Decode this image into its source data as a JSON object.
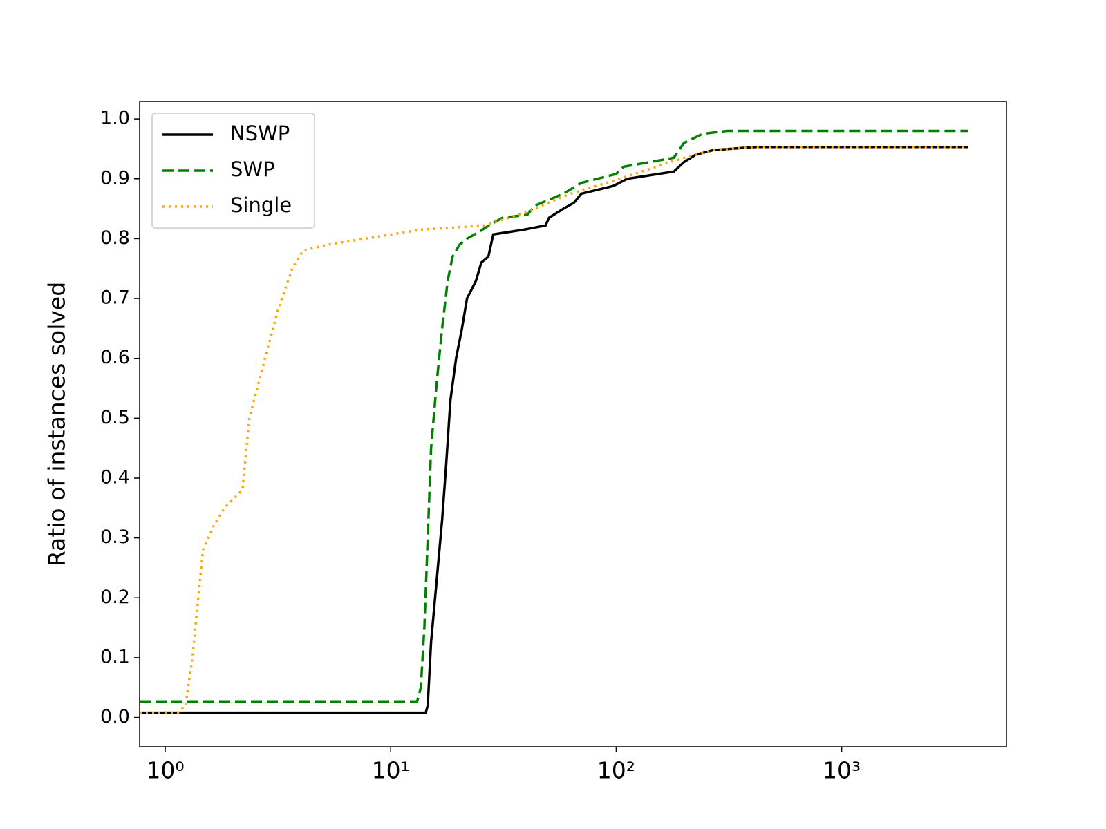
{
  "chart_data": {
    "type": "line",
    "y_label": "Ratio of instances solved",
    "xscale": "log",
    "xlim": [
      0.77,
      5380
    ],
    "xticks": [
      {
        "value": 1,
        "label": "10⁰"
      },
      {
        "value": 10,
        "label": "10¹"
      },
      {
        "value": 100,
        "label": "10²"
      },
      {
        "value": 1000,
        "label": "10³"
      }
    ],
    "ylim": [
      -0.049,
      1.029
    ],
    "yticks": [
      {
        "value": 0,
        "label": "0.0"
      },
      0.1,
      0.2,
      0.3,
      0.4,
      0.5,
      0.6,
      0.7,
      0.8,
      0.9,
      {
        "value": 1,
        "label": "1.0"
      }
    ],
    "grid": false,
    "legend": "upper left",
    "series": [
      {
        "name": "NSWP",
        "color": "#000000",
        "linestyle": "solid",
        "x": [
          0.77,
          14.3,
          14.6,
          15.1,
          16.0,
          16.9,
          17.6,
          18.4,
          19.5,
          20.7,
          21.8,
          23.9,
          25.2,
          27.1,
          28.5,
          39,
          48.6,
          50.4,
          58.3,
          65,
          70,
          97,
          112,
          180,
          200,
          225,
          270,
          417,
          3630
        ],
        "values": [
          0.008,
          0.008,
          0.02,
          0.126,
          0.23,
          0.33,
          0.42,
          0.53,
          0.6,
          0.65,
          0.7,
          0.73,
          0.76,
          0.77,
          0.807,
          0.815,
          0.822,
          0.835,
          0.85,
          0.86,
          0.875,
          0.888,
          0.9,
          0.912,
          0.928,
          0.94,
          0.948,
          0.953,
          0.953
        ]
      },
      {
        "name": "SWP",
        "color": "#008000",
        "linestyle": "dashed",
        "x": [
          0.77,
          13.1,
          13.6,
          14.1,
          14.6,
          15.1,
          16.0,
          16.9,
          17.9,
          18.8,
          20.2,
          21.8,
          24.3,
          28.1,
          31.4,
          40.4,
          43.5,
          58.3,
          70,
          100,
          108,
          180,
          200,
          242,
          310,
          3630
        ],
        "values": [
          0.027,
          0.027,
          0.05,
          0.15,
          0.3,
          0.45,
          0.56,
          0.65,
          0.73,
          0.77,
          0.79,
          0.8,
          0.81,
          0.825,
          0.835,
          0.84,
          0.855,
          0.875,
          0.893,
          0.908,
          0.92,
          0.935,
          0.96,
          0.975,
          0.98,
          0.98
        ]
      },
      {
        "name": "Single",
        "color": "#ffa500",
        "linestyle": "dotted",
        "x": [
          0.77,
          1.14,
          1.23,
          1.32,
          1.47,
          1.64,
          1.83,
          2.2,
          2.36,
          2.77,
          3.16,
          3.66,
          4.08,
          5.26,
          13.6,
          26.2,
          40.4,
          62.7,
          104,
          180,
          270,
          417,
          3630
        ],
        "values": [
          0.008,
          0.008,
          0.02,
          0.1,
          0.28,
          0.32,
          0.35,
          0.38,
          0.5,
          0.6,
          0.68,
          0.75,
          0.78,
          0.79,
          0.815,
          0.822,
          0.845,
          0.875,
          0.9,
          0.93,
          0.948,
          0.953,
          0.953
        ]
      }
    ]
  }
}
